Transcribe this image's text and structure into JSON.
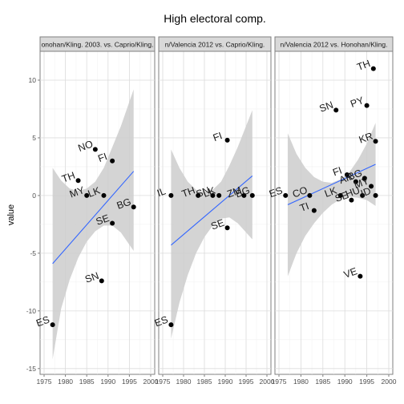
{
  "chart_data": {
    "type": "scatter",
    "title": "High electoral comp.",
    "xlabel": "",
    "ylabel": "value",
    "xlim": [
      1975,
      2000
    ],
    "ylim": [
      -15.5,
      12.5
    ],
    "x_ticks": [
      1975,
      1980,
      1985,
      1990,
      1995,
      2000
    ],
    "y_ticks": [
      -15,
      -10,
      -5,
      0,
      5,
      10
    ],
    "grid": true,
    "colors": {
      "panel_bg": "#ffffff",
      "grid_major": "#dcdcdc",
      "grid_minor": "#f0f0f0",
      "strip_bg": "#d9d9d9",
      "ribbon": "#cccccc",
      "fit_line": "#3366ff",
      "point": "#000000"
    },
    "panels": [
      {
        "strip": "onohan/Kling. 2003. vs. Caprio/Kling.",
        "points": [
          {
            "x": 1977,
            "y": -11.2,
            "label": "ES"
          },
          {
            "x": 1983,
            "y": 1.3,
            "label": "TH"
          },
          {
            "x": 1985,
            "y": 0.0,
            "label": "MY"
          },
          {
            "x": 1987,
            "y": 4.0,
            "label": "NO"
          },
          {
            "x": 1988.5,
            "y": -7.4,
            "label": "SN"
          },
          {
            "x": 1989,
            "y": 0.0,
            "label": "LK"
          },
          {
            "x": 1991,
            "y": 3.0,
            "label": "FI"
          },
          {
            "x": 1991,
            "y": -2.4,
            "label": "SE"
          },
          {
            "x": 1996,
            "y": -1.0,
            "label": "BG"
          }
        ],
        "fit": {
          "x": [
            1977,
            1996
          ],
          "y": [
            -5.9,
            2.1
          ]
        },
        "band": {
          "x": [
            1977,
            1979,
            1981,
            1983,
            1985,
            1987,
            1989,
            1991,
            1993,
            1996
          ],
          "lower": [
            -14.2,
            -9.8,
            -7.3,
            -5.4,
            -4.0,
            -3.1,
            -2.6,
            -2.6,
            -3.2,
            -4.8
          ],
          "upper": [
            2.4,
            1.3,
            0.6,
            0.4,
            0.6,
            1.2,
            2.4,
            4.2,
            6.0,
            9.2
          ]
        }
      },
      {
        "strip": "n/Valencia 2012 vs. Caprio/Kling.",
        "points": [
          {
            "x": 1977,
            "y": 0.0,
            "label": "IL"
          },
          {
            "x": 1977,
            "y": -11.2,
            "label": "ES"
          },
          {
            "x": 1983.5,
            "y": 0.0,
            "label": "TH"
          },
          {
            "x": 1987,
            "y": 0.0,
            "label": "SN"
          },
          {
            "x": 1988.5,
            "y": 0.0,
            "label": "LK"
          },
          {
            "x": 1990.5,
            "y": 4.8,
            "label": "FI"
          },
          {
            "x": 1990.5,
            "y": -2.8,
            "label": "SE"
          },
          {
            "x": 1994.5,
            "y": 0.0,
            "label": "ZM"
          },
          {
            "x": 1996.5,
            "y": 0.0,
            "label": "BG"
          }
        ],
        "fit": {
          "x": [
            1977,
            1996.5
          ],
          "y": [
            -4.3,
            1.7
          ]
        },
        "band": {
          "x": [
            1977,
            1979,
            1981,
            1983,
            1985,
            1987,
            1989,
            1991,
            1993,
            1996.5
          ],
          "lower": [
            -12.4,
            -9.3,
            -6.9,
            -5.0,
            -3.6,
            -2.6,
            -2.0,
            -1.9,
            -2.4,
            -3.8
          ],
          "upper": [
            4.0,
            2.4,
            1.2,
            0.5,
            0.3,
            0.5,
            1.2,
            2.6,
            4.2,
            7.4
          ]
        }
      },
      {
        "strip": "n/Valencia 2012 vs. Honohan/Kling.",
        "points": [
          {
            "x": 1976.5,
            "y": 0.0,
            "label": "ES"
          },
          {
            "x": 1982,
            "y": 0.0,
            "label": "CO"
          },
          {
            "x": 1983,
            "y": -1.3,
            "label": "TI"
          },
          {
            "x": 1988,
            "y": 7.4,
            "label": "SN"
          },
          {
            "x": 1989,
            "y": 0.0,
            "label": "LK"
          },
          {
            "x": 1990.5,
            "y": 1.8,
            "label": "FI"
          },
          {
            "x": 1991.5,
            "y": -0.4,
            "label": "SE"
          },
          {
            "x": 1992.5,
            "y": 1.2,
            "label": "AR"
          },
          {
            "x": 1993.5,
            "y": -7.0,
            "label": "VE"
          },
          {
            "x": 1994,
            "y": 0.0,
            "label": "HU"
          },
          {
            "x": 1994.5,
            "y": 1.5,
            "label": "BG"
          },
          {
            "x": 1995,
            "y": 7.8,
            "label": "PY"
          },
          {
            "x": 1996,
            "y": 0.8,
            "label": "MY"
          },
          {
            "x": 1996.5,
            "y": 11.0,
            "label": "TH"
          },
          {
            "x": 1997,
            "y": 4.7,
            "label": "KR"
          },
          {
            "x": 1997,
            "y": 0.0,
            "label": "ID"
          }
        ],
        "fit": {
          "x": [
            1977,
            1997
          ],
          "y": [
            -0.8,
            2.7
          ]
        },
        "band": {
          "x": [
            1977,
            1979,
            1981,
            1983,
            1985,
            1987,
            1989,
            1991,
            1993,
            1995,
            1997
          ],
          "lower": [
            -7.0,
            -5.0,
            -3.5,
            -2.4,
            -1.5,
            -0.8,
            -0.3,
            -0.1,
            -0.2,
            -0.4,
            -0.9
          ],
          "upper": [
            5.4,
            3.6,
            2.4,
            1.6,
            1.2,
            1.1,
            1.4,
            2.0,
            3.1,
            4.5,
            6.3
          ]
        }
      }
    ]
  }
}
